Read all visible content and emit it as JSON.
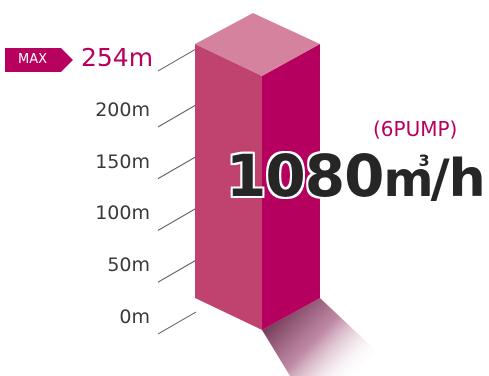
{
  "chart_data": {
    "type": "bar",
    "categories": [
      ""
    ],
    "values": [
      254
    ],
    "ylim": [
      0,
      254
    ],
    "ticks": [
      "0m",
      "50m",
      "100m",
      "150m",
      "200m"
    ],
    "max_badge": "MAX",
    "max_label": "254m",
    "annotation_note": "(6PUMP)",
    "annotation_value": "1080",
    "annotation_unit_base": "m",
    "annotation_unit_exp": "3",
    "annotation_unit_rest": "/h"
  },
  "colors": {
    "front": "#c0426e",
    "side": "#b5005f",
    "top": "#d5829f",
    "accent": "#b8005e",
    "text": "#3a3a3a"
  }
}
